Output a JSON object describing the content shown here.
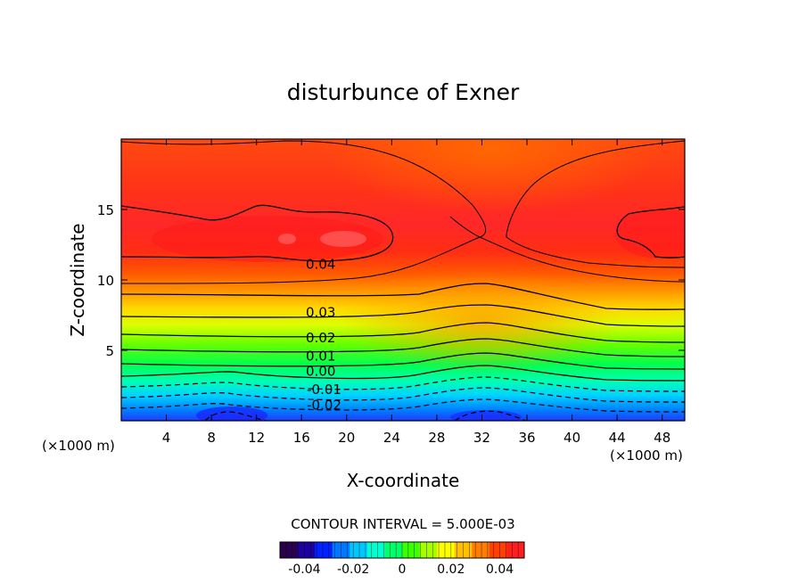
{
  "chart_data": {
    "type": "heatmap",
    "title": "disturbunce of Exner",
    "xlabel": "X-coordinate",
    "ylabel": "Z-coordinate",
    "x_unit_label_left": "(×1000 m)",
    "x_unit_label_right": "(×1000 m)",
    "xlim": [
      0,
      50
    ],
    "ylim": [
      0,
      20
    ],
    "x_ticks": [
      "4",
      "8",
      "12",
      "16",
      "20",
      "24",
      "28",
      "32",
      "36",
      "40",
      "44",
      "48"
    ],
    "y_ticks": [
      "5",
      "10",
      "15"
    ],
    "contour_interval_text": "CONTOUR INTERVAL = 5.000E-03",
    "contour_labels": [
      {
        "value": 0.04,
        "text": "0.04",
        "x": 17.7,
        "z": 11.1
      },
      {
        "value": 0.03,
        "text": "0.03",
        "x": 17.7,
        "z": 7.7
      },
      {
        "value": 0.02,
        "text": "0.02",
        "x": 17.7,
        "z": 5.9
      },
      {
        "value": 0.01,
        "text": "0.01",
        "x": 17.7,
        "z": 4.6
      },
      {
        "value": 0.0,
        "text": "0.00",
        "x": 17.7,
        "z": 3.5
      },
      {
        "value": -0.01,
        "text": "-0.01",
        "x": 18.0,
        "z": 2.2
      },
      {
        "value": -0.02,
        "text": "-0.02",
        "x": 18.0,
        "z": 1.1
      }
    ],
    "value_range": [
      -0.05,
      0.05
    ],
    "colorbar": {
      "ticks": [
        "-0.04",
        "-0.02",
        "0",
        "0.02",
        "0.04"
      ],
      "tick_values": [
        -0.04,
        -0.02,
        0,
        0.02,
        0.04
      ],
      "colors": [
        "#2a004f",
        "#1f00a0",
        "#0022ff",
        "#0077ff",
        "#00c8ff",
        "#00ffd0",
        "#00ff6a",
        "#3cff00",
        "#a8ff00",
        "#ffff00",
        "#ffc000",
        "#ff7d00",
        "#ff4000",
        "#ff1e1e"
      ]
    },
    "grid": false,
    "legend": "bottom-center colorbar"
  }
}
